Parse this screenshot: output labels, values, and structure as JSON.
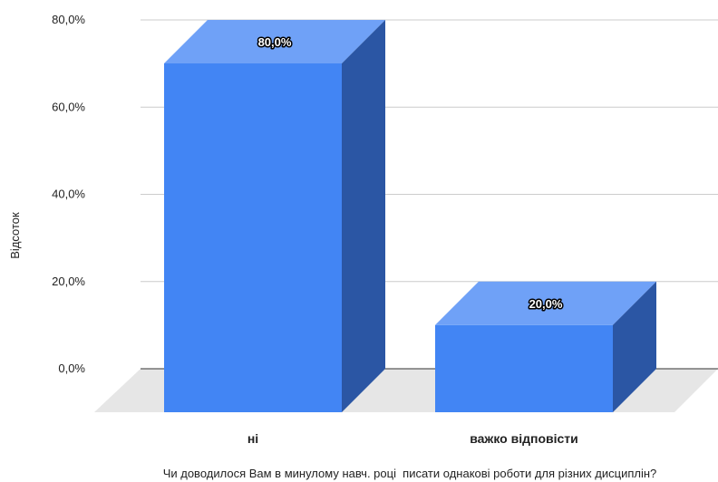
{
  "chart_data": {
    "type": "bar",
    "categories": [
      "ні",
      "важко відповісти"
    ],
    "values": [
      80.0,
      20.0
    ],
    "data_labels": [
      "80,0%",
      "20,0%"
    ],
    "xlabel": "Чи доводилося Вам в минулому навч. році  писати однакові роботи для різних дисциплін?",
    "ylabel": "Відсоток",
    "yticks": [
      "0,0%",
      "20,0%",
      "40,0%",
      "60,0%",
      "80,0%"
    ],
    "ylim": [
      0,
      80
    ],
    "grid": true,
    "style": "3d",
    "colors": {
      "front": "#4285f4",
      "top": "#6fa1f7",
      "side": "#2b56a4",
      "floor": "#e6e6e6",
      "grid": "#cccccc"
    }
  }
}
